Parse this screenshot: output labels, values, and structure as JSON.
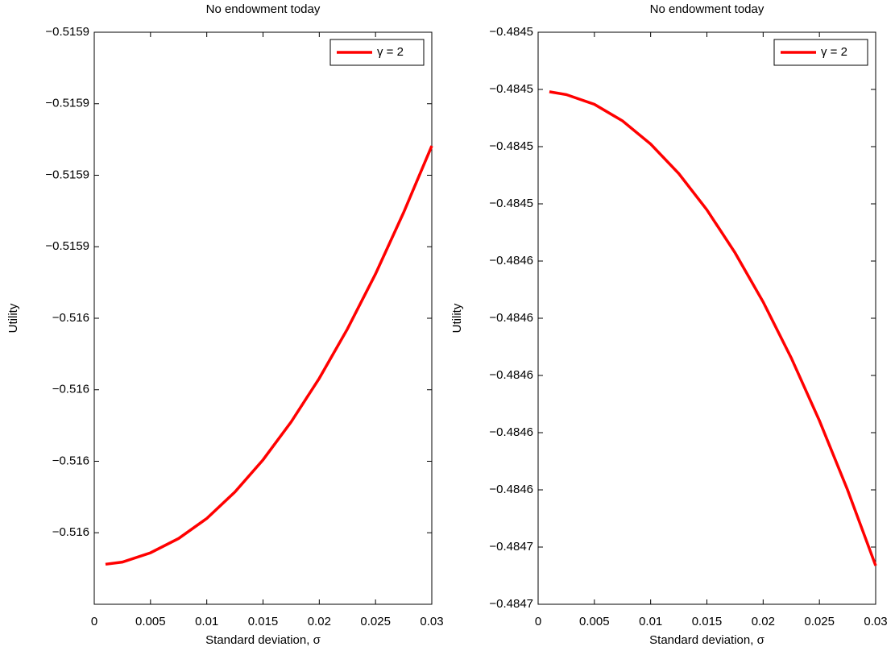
{
  "chart_data": [
    {
      "type": "line",
      "title": "No endowment today",
      "xlabel": "Standard deviation, σ",
      "ylabel": "Utility",
      "x": [
        0.001,
        0.0025,
        0.005,
        0.0075,
        0.01,
        0.0125,
        0.015,
        0.0175,
        0.02,
        0.0225,
        0.025,
        0.0275,
        0.03
      ],
      "series": [
        {
          "name": "γ = 2",
          "color": "#ff0000",
          "values": [
            -0.5159894,
            -0.5159891,
            -0.5159878,
            -0.5159858,
            -0.515983,
            -0.5159793,
            -0.5159748,
            -0.5159695,
            -0.5159634,
            -0.5159565,
            -0.5159488,
            -0.5159402,
            -0.5159309
          ]
        }
      ],
      "xlim": [
        0,
        0.03
      ],
      "xticks": [
        0,
        0.005,
        0.01,
        0.015,
        0.02,
        0.025,
        0.03
      ],
      "ylim": [
        -0.515995,
        -0.515915
      ],
      "yticks": [
        {
          "value": -0.515915,
          "label": "−0.5159"
        },
        {
          "value": -0.515925,
          "label": "−0.5159"
        },
        {
          "value": -0.515935,
          "label": "−0.5159"
        },
        {
          "value": -0.515945,
          "label": "−0.5159"
        },
        {
          "value": -0.515955,
          "label": "−0.516"
        },
        {
          "value": -0.515965,
          "label": "−0.516"
        },
        {
          "value": -0.515975,
          "label": "−0.516"
        },
        {
          "value": -0.515985,
          "label": "−0.516"
        }
      ],
      "legend": "northeast"
    },
    {
      "type": "line",
      "title": "No endowment today",
      "xlabel": "Standard deviation, σ",
      "ylabel": "Utility",
      "x": [
        0.001,
        0.0025,
        0.005,
        0.0075,
        0.01,
        0.0125,
        0.015,
        0.0175,
        0.02,
        0.0225,
        0.025,
        0.0275,
        0.03
      ],
      "series": [
        {
          "name": "γ = 2",
          "color": "#ff0000",
          "values": [
            -0.4845008,
            -0.4845018,
            -0.4845052,
            -0.484511,
            -0.4845191,
            -0.4845294,
            -0.4845421,
            -0.4845571,
            -0.4845743,
            -0.4845939,
            -0.4846158,
            -0.48464,
            -0.4846665
          ]
        }
      ],
      "xlim": [
        0,
        0.03
      ],
      "xticks": [
        0,
        0.005,
        0.01,
        0.015,
        0.02,
        0.025,
        0.03
      ],
      "ylim": [
        -0.48468,
        -0.48448
      ],
      "yticks": [
        {
          "value": -0.48448,
          "label": "−0.4845"
        },
        {
          "value": -0.4845,
          "label": "−0.4845"
        },
        {
          "value": -0.48452,
          "label": "−0.4845"
        },
        {
          "value": -0.48454,
          "label": "−0.4845"
        },
        {
          "value": -0.48456,
          "label": "−0.4846"
        },
        {
          "value": -0.48458,
          "label": "−0.4846"
        },
        {
          "value": -0.4846,
          "label": "−0.4846"
        },
        {
          "value": -0.48462,
          "label": "−0.4846"
        },
        {
          "value": -0.48464,
          "label": "−0.4846"
        },
        {
          "value": -0.48466,
          "label": "−0.4847"
        },
        {
          "value": -0.48468,
          "label": "−0.4847"
        }
      ],
      "legend": "northeast"
    }
  ]
}
